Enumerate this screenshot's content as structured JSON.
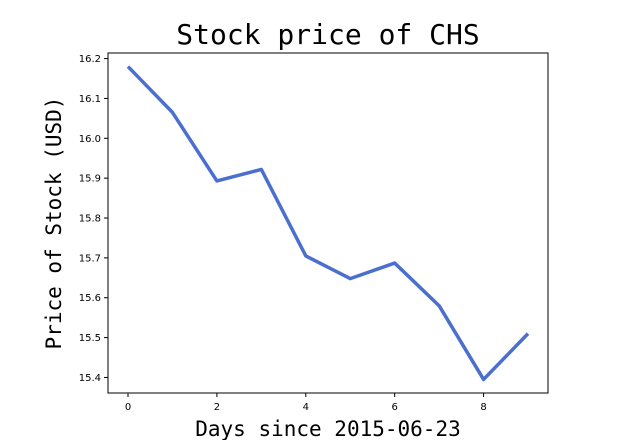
{
  "chart_data": {
    "type": "line",
    "title": "Stock price of CHS",
    "xlabel": "Days since 2015-06-23",
    "ylabel": "Price of Stock (USD)",
    "x": [
      0,
      1,
      2,
      3,
      4,
      5,
      6,
      7,
      8,
      9
    ],
    "series": [
      {
        "values": [
          16.18,
          16.065,
          15.893,
          15.922,
          15.705,
          15.648,
          15.687,
          15.58,
          15.395,
          15.51
        ]
      }
    ],
    "xlim": [
      -0.45,
      9.45
    ],
    "ylim": [
      15.361,
      16.214
    ],
    "xticks": [
      0,
      2,
      4,
      6,
      8
    ],
    "yticks": [
      15.4,
      15.5,
      15.6,
      15.7,
      15.8,
      15.9,
      16.0,
      16.1,
      16.2
    ],
    "grid": false,
    "legend": "none",
    "line_color": "#4b6fcf"
  }
}
